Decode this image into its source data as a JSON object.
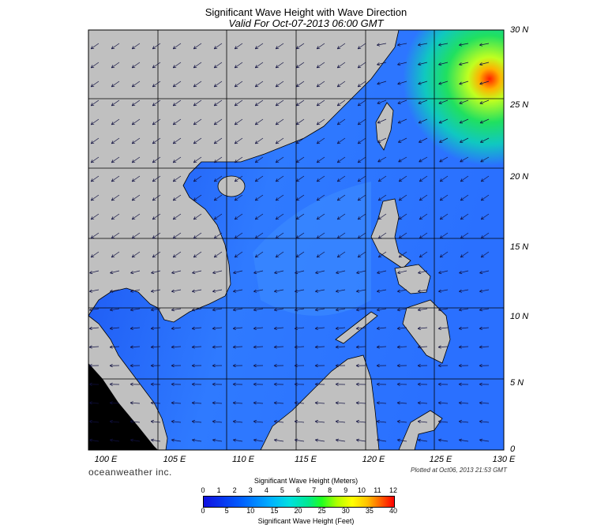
{
  "title": "Significant Wave Height with Wave Direction",
  "subtitle": "Valid For Oct-07-2013 06:00 GMT",
  "lat_labels": [
    "30 N",
    "25 N",
    "20 N",
    "15 N",
    "10 N",
    "5 N",
    "0"
  ],
  "lon_labels": [
    "100 E",
    "105 E",
    "110 E",
    "115 E",
    "120 E",
    "125 E",
    "130 E"
  ],
  "brand": "oceanweather inc.",
  "plotted": "Plotted at Oct06, 2013 21:53 GMT",
  "colorbar": {
    "meters_label": "Significant Wave Height (Meters)",
    "feet_label": "Significant Wave Height (Feet)",
    "meters_ticks": [
      "0",
      "1",
      "2",
      "3",
      "4",
      "5",
      "6",
      "7",
      "8",
      "9",
      "10",
      "11",
      "12"
    ],
    "feet_ticks": [
      "0",
      "5",
      "10",
      "15",
      "20",
      "25",
      "30",
      "35",
      "40"
    ]
  },
  "colors": {
    "land": "#c0c0c0",
    "sea_low": "#1e50f0",
    "sea_mid": "#3a8cff",
    "high": "#20e060",
    "peak": "#ff2000"
  }
}
